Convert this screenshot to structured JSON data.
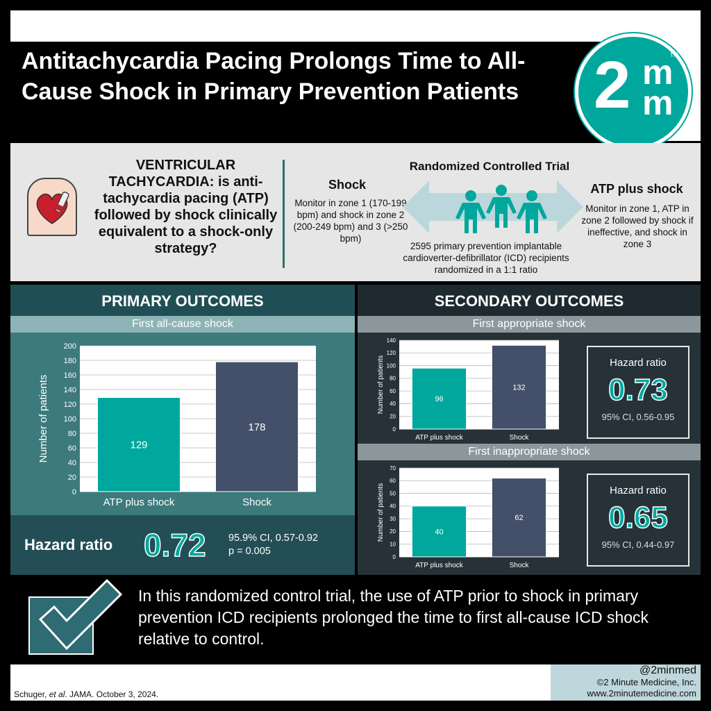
{
  "title": "Antitachycardia Pacing Prolongs Time to All-Cause Shock in Primary Prevention Patients",
  "logo": {
    "main": "2",
    "sup1": "m",
    "sup2": "m",
    "tm": "TM"
  },
  "intro": {
    "question": "VENTRICULAR TACHYCARDIA: is anti-tachycardia pacing (ATP) followed by shock clinically equivalent to a shock-only strategy?",
    "rct_title": "Randomized Controlled Trial",
    "shock_head": "Shock",
    "shock_desc": "Monitor in zone 1 (170-199 bpm) and shock in zone 2 (200-249 bpm) and 3 (>250 bpm)",
    "atp_head": "ATP plus shock",
    "atp_desc": "Monitor in zone 1, ATP in zone 2 followed by shock if ineffective, and shock in zone 3",
    "rct_desc": "2595 primary prevention implantable cardioverter-defibrillator (ICD) recipients randomized in a 1:1 ratio"
  },
  "primary": {
    "heading": "PRIMARY OUTCOMES",
    "subheading": "First all-cause shock",
    "hr_label": "Hazard ratio",
    "hr_value": "0.72",
    "hr_ci": "95.9% CI, 0.57-0.92",
    "hr_p": "p = 0.005"
  },
  "secondary": {
    "heading": "SECONDARY OUTCOMES",
    "sub1": "First appropriate shock",
    "sub2": "First inappropriate shock",
    "hr1": {
      "label": "Hazard ratio",
      "value": "0.73",
      "ci": "95% CI, 0.56-0.95"
    },
    "hr2": {
      "label": "Hazard ratio",
      "value": "0.65",
      "ci": "95% CI, 0.44-0.97"
    }
  },
  "conclusion": "In this randomized control trial, the use of ATP prior to shock in primary prevention ICD recipients prolonged the time to first all-cause ICD shock relative to control.",
  "citation": {
    "authors": "Schuger, ",
    "etal": "et al",
    "journal": ". JAMA",
    "date": ". October 3, 2024."
  },
  "brand": {
    "handle": "@2minmed",
    "copy": "©2 Minute Medicine, Inc.",
    "url": "www.2minutemedicine.com"
  },
  "colors": {
    "teal": "#00a79d",
    "slate": "#44506a",
    "primary_bg": "#3d7a7c",
    "secondary_bg": "#263238"
  },
  "chart_data": [
    {
      "type": "bar",
      "title": "First all-cause shock",
      "categories": [
        "ATP plus shock",
        "Shock"
      ],
      "values": [
        129,
        178
      ],
      "ylabel": "Number of patients",
      "ylim": [
        0,
        200
      ],
      "yticks": [
        0,
        20,
        40,
        60,
        80,
        100,
        120,
        140,
        160,
        180,
        200
      ],
      "bar_colors": [
        "#00a79d",
        "#44506a"
      ],
      "grid": true
    },
    {
      "type": "bar",
      "title": "First appropriate shock",
      "categories": [
        "ATP plus shock",
        "Shock"
      ],
      "values": [
        96,
        132
      ],
      "ylabel": "Number of patients",
      "ylim": [
        0,
        140
      ],
      "yticks": [
        0,
        20,
        40,
        60,
        80,
        100,
        120,
        140
      ],
      "bar_colors": [
        "#00a79d",
        "#44506a"
      ],
      "grid": true
    },
    {
      "type": "bar",
      "title": "First inappropriate shock",
      "categories": [
        "ATP plus shock",
        "Shock"
      ],
      "values": [
        40,
        62
      ],
      "ylabel": "Number of patients",
      "ylim": [
        0,
        70
      ],
      "yticks": [
        0,
        10,
        20,
        30,
        40,
        50,
        60,
        70
      ],
      "bar_colors": [
        "#00a79d",
        "#44506a"
      ],
      "grid": true
    }
  ]
}
